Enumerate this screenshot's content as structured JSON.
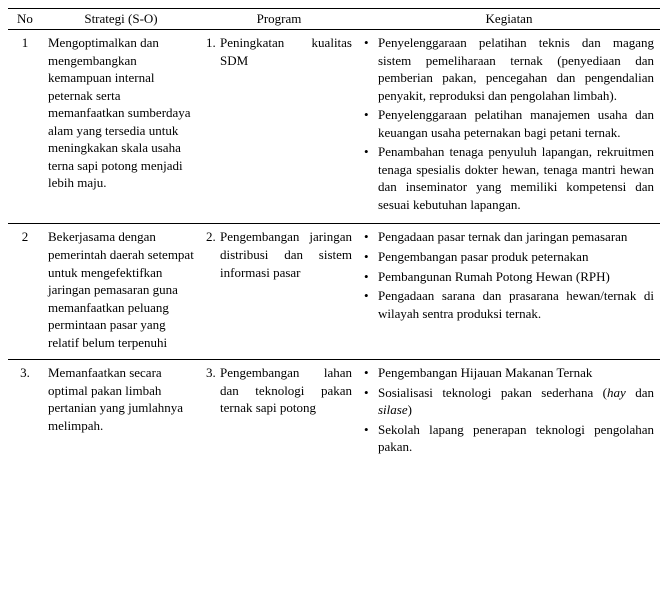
{
  "headers": {
    "no": "No",
    "strategi": "Strategi (S-O)",
    "program": "Program",
    "kegiatan": "Kegiatan"
  },
  "rows": [
    {
      "no": "1",
      "strategi": "Mengoptimalkan dan mengembangkan kemampuan internal peternak serta memanfaatkan sumberdaya alam yang tersedia untuk meningkakan skala usaha terna sapi potong menjadi lebih maju.",
      "program_num": "1.",
      "program_text": "Peningkatan kualitas SDM",
      "kegiatan": [
        "Penyelenggaraan pelatihan teknis dan magang sistem pemeliharaan ternak (penyediaan dan pemberian pakan, pencegahan dan pengendalian penyakit, reproduksi dan pengolahan limbah).",
        "Penyelenggaraan pelatihan manajemen usaha dan keuangan usaha peternakan bagi petani ternak.",
        "Penambahan tenaga penyuluh lapangan, rekruitmen tenaga spesialis dokter hewan, tenaga mantri hewan dan inseminator yang memiliki kompetensi dan sesuai kebutuhan lapangan."
      ]
    },
    {
      "no": "2",
      "strategi": "Bekerjasama dengan pemerintah daerah setempat untuk mengefektifkan jaringan pemasaran guna memanfaatkan peluang permintaan pasar yang relatif belum terpenuhi",
      "program_num": "2.",
      "program_text": "Pengembangan jaringan distribusi dan sistem informasi pasar",
      "kegiatan": [
        "Pengadaan pasar ternak dan jaringan pemasaran",
        "Pengembangan pasar produk peternakan",
        "Pembangunan Rumah Potong Hewan (RPH)",
        "Pengadaan sarana dan prasarana hewan/ternak di wilayah sentra produksi ternak."
      ]
    },
    {
      "no": "3.",
      "strategi": "Memanfaatkan secara optimal pakan limbah pertanian yang jumlahnya melimpah.",
      "program_num": "3.",
      "program_text": "Pengembangan lahan dan teknologi pakan ternak sapi potong",
      "kegiatan": [
        "Pengembangan Hijauan Makanan Ternak",
        "Sosialisasi teknologi pakan sederhana (hay dan silase)",
        "Sekolah lapang penerapan teknologi pengolahan pakan."
      ]
    }
  ]
}
